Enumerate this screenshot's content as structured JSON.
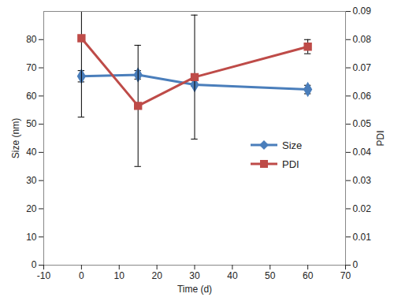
{
  "chart_data": {
    "type": "line",
    "x": [
      0,
      15,
      30,
      60
    ],
    "xlim": [
      -10,
      70
    ],
    "xticks": [
      -10,
      0,
      10,
      20,
      30,
      40,
      50,
      60,
      70
    ],
    "xlabel": "Time (d)",
    "ylabel": "Size (nm)",
    "ylim": [
      0,
      90
    ],
    "yticks": [
      0,
      10,
      20,
      30,
      40,
      50,
      60,
      70,
      80
    ],
    "y2label": "PDI",
    "y2lim": [
      0,
      0.09
    ],
    "y2ticks": [
      0,
      0.01,
      0.02,
      0.03,
      0.04,
      0.05,
      0.06,
      0.07,
      0.08,
      0.09
    ],
    "legend": "right",
    "series": [
      {
        "name": "Size",
        "color": "#4a7ebb",
        "marker": "diamond",
        "values": [
          67,
          67.5,
          64,
          62.3
        ],
        "errors": [
          2,
          1.5,
          0.5,
          1.5
        ]
      },
      {
        "name": "PDI",
        "axis": "y2",
        "color": "#be4b48",
        "marker": "square",
        "values": [
          0.0805,
          0.0565,
          0.0667,
          0.0775
        ],
        "errors": [
          0.028,
          0.0215,
          0.022,
          0.0025
        ]
      }
    ]
  }
}
